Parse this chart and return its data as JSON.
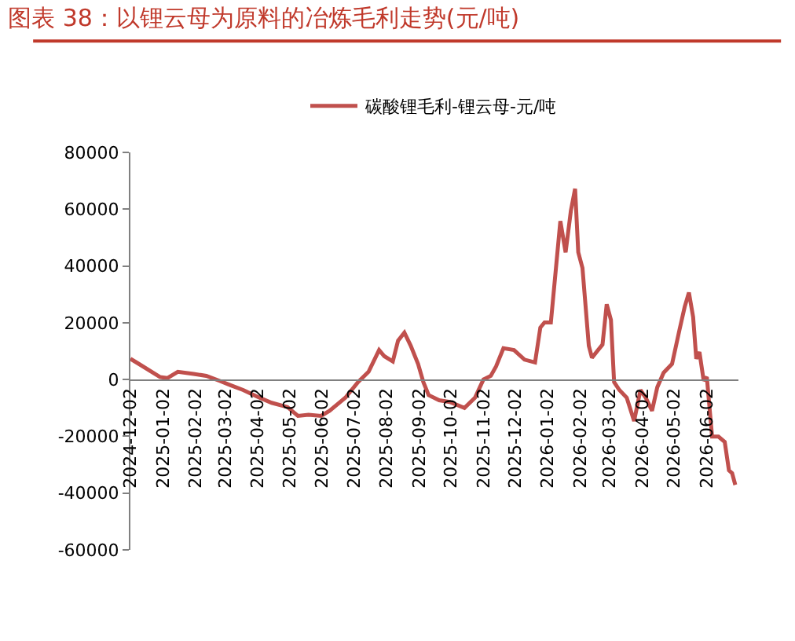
{
  "chart_data": {
    "type": "line",
    "title": "图表 38：以锂云母为原料的冶炼毛利走势(元/吨)",
    "x": [
      "2024-12-02",
      "2024-12-10",
      "2024-12-30",
      "2025-01-06",
      "2025-01-16",
      "2025-01-31",
      "2025-02-12",
      "2025-02-25",
      "2025-03-07",
      "2025-03-19",
      "2025-04-01",
      "2025-04-15",
      "2025-04-30",
      "2025-05-10",
      "2025-05-20",
      "2025-06-01",
      "2025-06-09",
      "2025-06-24",
      "2025-07-06",
      "2025-07-16",
      "2025-07-26",
      "2025-07-31",
      "2025-08-08",
      "2025-08-13",
      "2025-08-19",
      "2025-08-25",
      "2025-09-01",
      "2025-09-06",
      "2025-09-11",
      "2025-09-21",
      "2025-10-01",
      "2025-10-15",
      "2025-10-25",
      "2025-11-02",
      "2025-11-09",
      "2025-11-14",
      "2025-11-21",
      "2025-12-01",
      "2025-12-11",
      "2025-12-21",
      "2025-12-26",
      "2025-12-30",
      "2026-01-05",
      "2026-01-14",
      "2026-01-19",
      "2026-01-24",
      "2026-01-28",
      "2026-01-31",
      "2026-02-04",
      "2026-02-10",
      "2026-02-13",
      "2026-02-23",
      "2026-02-27",
      "2026-03-03",
      "2026-03-06",
      "2026-03-11",
      "2026-03-18",
      "2026-03-25",
      "2026-03-31",
      "2026-04-05",
      "2026-04-11",
      "2026-04-16",
      "2026-04-22",
      "2026-04-30",
      "2026-05-07",
      "2026-05-12",
      "2026-05-16",
      "2026-05-20",
      "2026-05-23",
      "2026-05-26",
      "2026-05-30",
      "2026-06-02",
      "2026-06-07",
      "2026-06-13",
      "2026-06-19",
      "2026-06-23",
      "2026-06-26",
      "2026-06-29"
    ],
    "series": [
      {
        "name": "碳酸锂毛利-锂云母-元/吨",
        "color": "#c0504d",
        "values": [
          7300,
          5500,
          900,
          500,
          2700,
          2000,
          1300,
          -500,
          -2000,
          -3700,
          -6000,
          -8200,
          -9700,
          -12800,
          -12400,
          -12800,
          -11000,
          -6400,
          -900,
          2700,
          10400,
          8200,
          6400,
          13700,
          16500,
          11900,
          5500,
          -900,
          -5500,
          -7300,
          -7900,
          -10000,
          -6400,
          0,
          1300,
          4600,
          11000,
          10400,
          7000,
          6000,
          18300,
          20100,
          20100,
          55800,
          44800,
          59500,
          67200,
          44800,
          39300,
          11900,
          7700,
          12300,
          26500,
          21000,
          -900,
          -3700,
          -6400,
          -14600,
          -3700,
          -6400,
          -11000,
          -2700,
          2400,
          5500,
          17400,
          25600,
          30600,
          22000,
          7300,
          9700,
          -400,
          900,
          -20100,
          -20100,
          -22000,
          -32000,
          -33000,
          -37100
        ]
      }
    ],
    "xlim": [
      "2024-12-02",
      "2026-07-02"
    ],
    "xticks": [
      "2024-12-02",
      "2025-01-02",
      "2025-02-02",
      "2025-03-02",
      "2025-04-02",
      "2025-05-02",
      "2025-06-02",
      "2025-07-02",
      "2025-08-02",
      "2025-09-02",
      "2025-10-02",
      "2025-11-02",
      "2025-12-02",
      "2026-01-02",
      "2026-02-02",
      "2026-03-02",
      "2026-04-02",
      "2026-05-02",
      "2026-06-02"
    ],
    "ylim": [
      -60000,
      80000
    ],
    "yticks": [
      -60000,
      -40000,
      -20000,
      0,
      20000,
      40000,
      60000,
      80000
    ],
    "legend": "top",
    "marker": "none",
    "line_style": "solid"
  }
}
